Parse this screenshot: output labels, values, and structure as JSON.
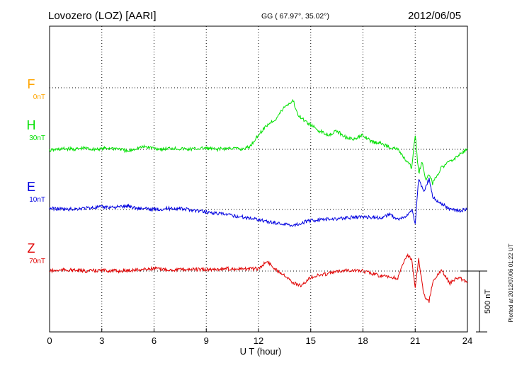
{
  "header": {
    "station": "Lovozero (LOZ)  [AARI]",
    "coords": "GG ( 67.97°,  35.02°)",
    "date": "2012/06/05",
    "plotted": "Plotted at 2012/07/06 01:22 UT"
  },
  "chart_data": {
    "type": "line",
    "xlabel": "U T (hour)",
    "xlim": [
      0,
      24
    ],
    "x_ticks": [
      "0",
      "3",
      "6",
      "9",
      "12",
      "15",
      "18",
      "21",
      "24"
    ],
    "scale_label": "500 nT",
    "scale_nT": 500,
    "series": [
      {
        "name": "F",
        "baseline_label": "0nT",
        "color": "#ffa500",
        "x": [],
        "y": []
      },
      {
        "name": "H",
        "baseline_label": "30nT",
        "color": "#00e000",
        "x": [
          0,
          0.5,
          1,
          1.5,
          2,
          2.5,
          3,
          3.5,
          4,
          4.5,
          5,
          5.5,
          6,
          6.5,
          7,
          7.5,
          8,
          8.5,
          9,
          9.5,
          10,
          10.5,
          11,
          11.5,
          12,
          12.5,
          13,
          13.5,
          14,
          14.2,
          14.5,
          15,
          15.5,
          16,
          16.5,
          17,
          17.5,
          18,
          18.5,
          19,
          19.5,
          20,
          20.5,
          20.8,
          21,
          21.2,
          21.4,
          21.6,
          21.8,
          22,
          22.5,
          23,
          23.5,
          24
        ],
        "y": [
          -10,
          0,
          5,
          0,
          10,
          0,
          5,
          10,
          5,
          -20,
          10,
          20,
          10,
          0,
          10,
          5,
          0,
          5,
          10,
          0,
          5,
          10,
          0,
          20,
          120,
          200,
          250,
          350,
          400,
          300,
          250,
          200,
          150,
          120,
          150,
          100,
          80,
          120,
          60,
          50,
          20,
          0,
          -100,
          -150,
          120,
          -200,
          -100,
          -250,
          -200,
          -280,
          -150,
          -100,
          -50,
          10
        ]
      },
      {
        "name": "E",
        "baseline_label": "10nT",
        "color": "#0000e0",
        "x": [
          0,
          1,
          2,
          3,
          4,
          4.5,
          5,
          6,
          7,
          8,
          9,
          10,
          11,
          12,
          12.5,
          13,
          13.5,
          14,
          14.5,
          15,
          16,
          17,
          18,
          19,
          19.5,
          20,
          20.5,
          20.8,
          21,
          21.2,
          21.5,
          21.8,
          22,
          22.5,
          23,
          23.5,
          24
        ],
        "y": [
          10,
          0,
          10,
          20,
          20,
          30,
          10,
          0,
          10,
          0,
          -20,
          -40,
          -60,
          -80,
          -100,
          -110,
          -120,
          -130,
          -110,
          -90,
          -80,
          -70,
          -60,
          -70,
          -40,
          -80,
          -60,
          0,
          -120,
          250,
          150,
          250,
          100,
          50,
          0,
          -10,
          0
        ]
      },
      {
        "name": "Z",
        "baseline_label": "70nT",
        "color": "#e00000",
        "x": [
          0,
          1,
          2,
          3,
          4,
          5,
          6,
          7,
          8,
          9,
          10,
          11,
          12,
          12.5,
          13,
          13.5,
          14,
          14.5,
          15,
          16,
          17,
          18,
          19,
          20,
          20.5,
          20.8,
          21,
          21.2,
          21.5,
          21.8,
          22,
          22.5,
          23,
          23.5,
          24
        ],
        "y": [
          0,
          10,
          0,
          5,
          0,
          10,
          20,
          10,
          15,
          10,
          20,
          15,
          20,
          80,
          10,
          -30,
          -100,
          -120,
          -50,
          -20,
          10,
          0,
          -40,
          -60,
          130,
          100,
          -150,
          100,
          -200,
          -250,
          -100,
          10,
          -100,
          -50,
          -100
        ]
      }
    ]
  }
}
